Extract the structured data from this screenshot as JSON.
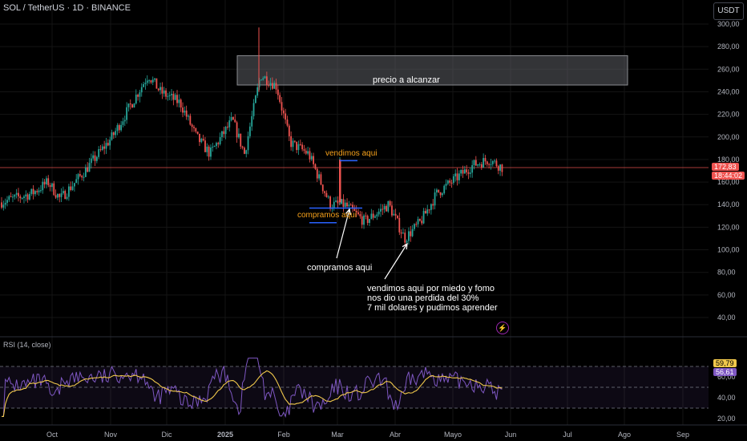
{
  "header": {
    "title": "SOL / TetherUS · 1D · BINANCE",
    "currency": "USDT"
  },
  "price_axis": {
    "ticks": [
      "300,00",
      "280,00",
      "260,00",
      "240,00",
      "220,00",
      "200,00",
      "180,00",
      "160,00",
      "140,00",
      "120,00",
      "100,00",
      "80,00",
      "60,00",
      "40,00"
    ]
  },
  "rsi_axis": {
    "ticks": [
      "60,00",
      "40,00",
      "20,00"
    ]
  },
  "x_axis": {
    "ticks": [
      "Oct",
      "Nov",
      "Dic",
      "2025",
      "Feb",
      "Mar",
      "Abr",
      "Mayo",
      "Jun",
      "Jul",
      "Ago",
      "Sep"
    ]
  },
  "price_badge": {
    "value": "172,83",
    "countdown": "18:44:02"
  },
  "rsi": {
    "label": "RSI (14, close)",
    "value_ma": "59,79",
    "value_rsi": "56,61"
  },
  "annotations": {
    "target_zone": "precio a alcanzar",
    "sold_here_top": "vendimos aqui",
    "bought_here_small": "compramos aqui",
    "bought_here": "compramos aqui",
    "sold_fear_1": "vendimos aqui por miedo y fomo",
    "sold_fear_2": "nos dio una perdida del 30%",
    "sold_fear_3": "7 mil dolares y pudimos aprender"
  },
  "colors": {
    "up": "#26a69a",
    "down": "#ef5350",
    "rsi_line": "#7e57c2",
    "rsi_ma": "#f0c84b",
    "annotation_orange": "#f7a21b"
  },
  "chart_data": {
    "type": "candlestick",
    "symbol": "SOL / TetherUS",
    "interval": "1D",
    "exchange": "BINANCE",
    "x_ticks": [
      "Oct",
      "Nov",
      "Dic",
      "2025",
      "Feb",
      "Mar",
      "Abr",
      "Mayo",
      "Jun",
      "Jul",
      "Ago",
      "Sep"
    ],
    "price_range": [
      40,
      300
    ],
    "current_price": 172.83,
    "target_zone": [
      246,
      272
    ],
    "close_path": [
      {
        "x": "Sep",
        "y": 142
      },
      {
        "x": "Oct",
        "y": 150
      },
      {
        "x": "Oct",
        "y": 160
      },
      {
        "x": "Oct",
        "y": 145
      },
      {
        "x": "Nov",
        "y": 165
      },
      {
        "x": "Nov",
        "y": 200
      },
      {
        "x": "Nov",
        "y": 255
      },
      {
        "x": "Dic",
        "y": 240
      },
      {
        "x": "Dic",
        "y": 230
      },
      {
        "x": "Dic",
        "y": 200
      },
      {
        "x": "Dic",
        "y": 185
      },
      {
        "x": "2025",
        "y": 215
      },
      {
        "x": "2025",
        "y": 185
      },
      {
        "x": "2025",
        "y": 255
      },
      {
        "x": "Feb",
        "y": 245
      },
      {
        "x": "Feb",
        "y": 195
      },
      {
        "x": "Feb",
        "y": 185
      },
      {
        "x": "Mar",
        "y": 140
      },
      {
        "x": "Mar",
        "y": 140
      },
      {
        "x": "Mar",
        "y": 125
      },
      {
        "x": "Abr",
        "y": 140
      },
      {
        "x": "Abr",
        "y": 110
      },
      {
        "x": "Abr",
        "y": 125
      },
      {
        "x": "Mayo",
        "y": 150
      },
      {
        "x": "Mayo",
        "y": 175
      },
      {
        "x": "Mayo",
        "y": 180
      },
      {
        "x": "Mayo",
        "y": 172.83
      }
    ],
    "rsi": {
      "period": 14,
      "source": "close",
      "value": 56.61,
      "ma": 59.79,
      "bands": [
        30,
        70
      ],
      "range": [
        20,
        80
      ]
    }
  }
}
